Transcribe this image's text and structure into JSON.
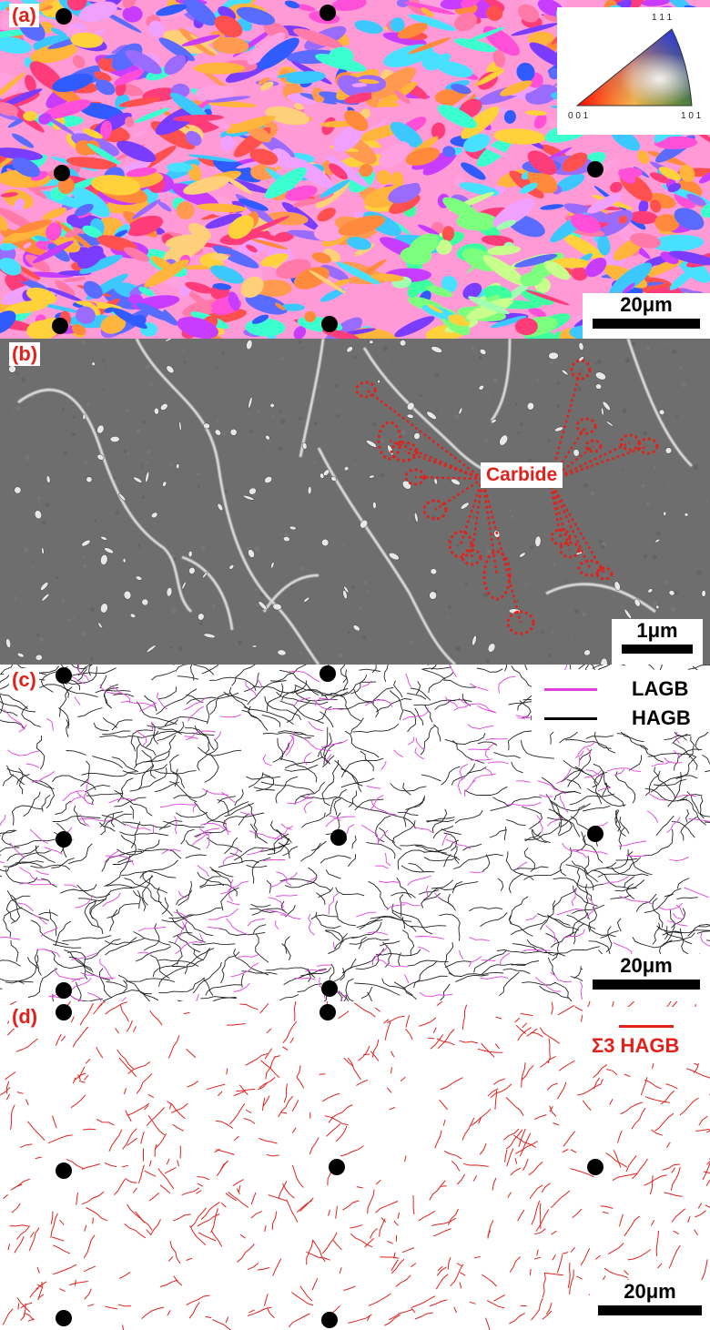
{
  "panels": {
    "a": {
      "label": "(a)",
      "scale_bar": "20μm",
      "ipf_key": {
        "top": "1 1 1",
        "left": "0 0 1",
        "right": "1 0 1"
      }
    },
    "b": {
      "label": "(b)",
      "scale_bar": "1μm",
      "annotation": "Carbide"
    },
    "c": {
      "label": "(c)",
      "scale_bar": "20μm",
      "legend": [
        {
          "label": "LAGB",
          "color": "#e040e0"
        },
        {
          "label": "HAGB",
          "color": "#000000"
        }
      ]
    },
    "d": {
      "label": "(d)",
      "scale_bar": "20μm",
      "legend": [
        {
          "label": "Σ3  HAGB",
          "color": "#e0221b"
        }
      ]
    }
  },
  "colors": {
    "label_red": "#e0221b",
    "sem_background": "#6e6e6e",
    "lagb": "#e040e0",
    "hagb": "#000000",
    "sigma3": "#e0221b"
  }
}
